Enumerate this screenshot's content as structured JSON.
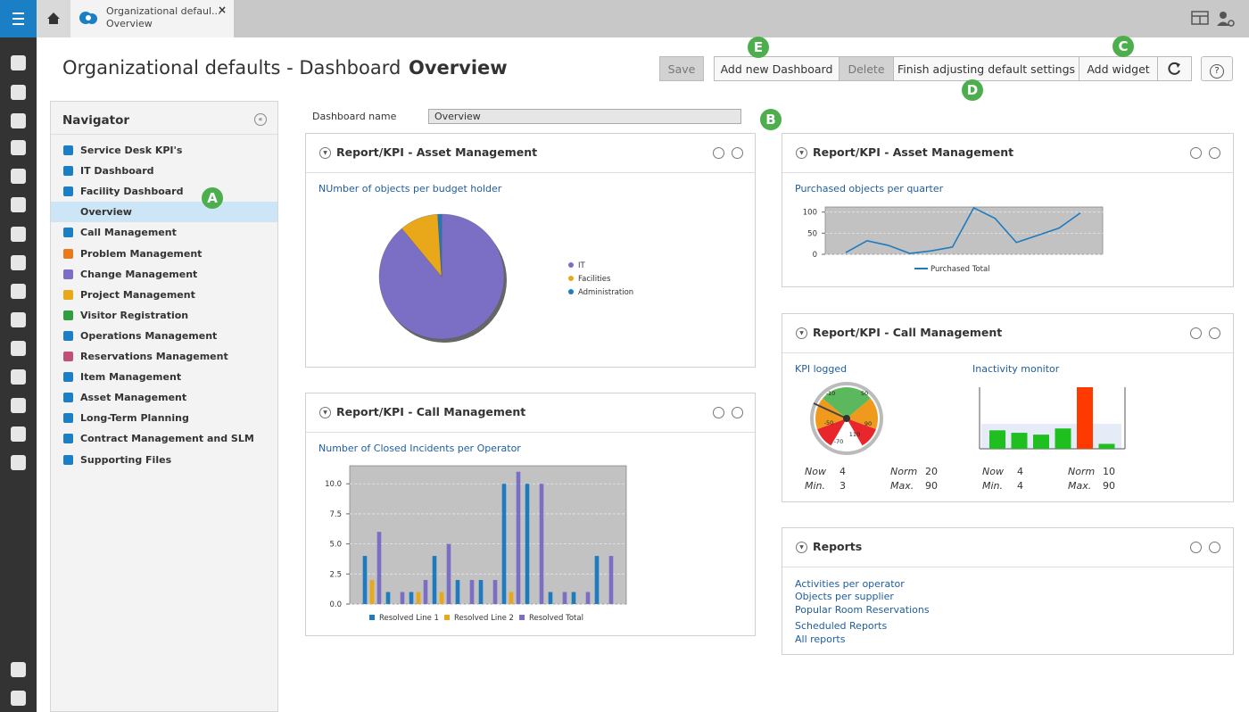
{
  "app": {
    "tab": {
      "title": "Organizational defaul...",
      "subtitle": "Overview",
      "close": "×"
    }
  },
  "header": {
    "title": "Organizational defaults - Dashboard",
    "subtitle": "Overview"
  },
  "toolbar": {
    "save": "Save",
    "add_dashboard": "Add new Dashboard",
    "delete": "Delete",
    "finish": "Finish adjusting default settings",
    "add_widget": "Add widget",
    "help": "?"
  },
  "callouts": {
    "a": "A",
    "b": "B",
    "c": "C",
    "d": "D",
    "e": "E"
  },
  "navigator": {
    "title": "Navigator",
    "selected": 3,
    "items": [
      "Service Desk KPI's",
      "IT Dashboard",
      "Facility Dashboard",
      "Overview",
      "Call Management",
      "Problem Management",
      "Change Management",
      "Project Management",
      "Visitor Registration",
      "Operations Management",
      "Reservations Management",
      "Item Management",
      "Asset Management",
      "Long-Term Planning",
      "Contract Management and SLM",
      "Supporting Files"
    ]
  },
  "dashboard_name": {
    "label": "Dashboard name",
    "value": "Overview"
  },
  "widgets": [
    {
      "title": "Report/KPI - Asset Management",
      "chart_data": {
        "type": "pie",
        "title": "NUmber of objects per budget holder",
        "categories": [
          "IT",
          "Facilities",
          "Administration"
        ],
        "values": [
          89,
          10,
          1
        ],
        "colors": [
          "#7a6fc4",
          "#e9a81a",
          "#1f7bbf"
        ]
      }
    },
    {
      "title": "Report/KPI - Call Management",
      "chart_data": {
        "type": "bar",
        "title": "Number of Closed Incidents per Operator",
        "categories": [
          null,
          null,
          null,
          null,
          null,
          null,
          null,
          null,
          null,
          null,
          null
        ],
        "series": [
          {
            "name": "Resolved Line 1",
            "color": "#1f7bbf",
            "values": [
              4,
              1,
              1,
              4,
              2,
              2,
              10,
              10,
              1,
              1,
              4
            ]
          },
          {
            "name": "Resolved Line 2",
            "color": "#e9a81a",
            "values": [
              2,
              0,
              1,
              1,
              0,
              0,
              1,
              0,
              0,
              0,
              0
            ]
          },
          {
            "name": "Resolved Total",
            "color": "#7a6fc4",
            "values": [
              6,
              1,
              2,
              5,
              2,
              2,
              11,
              10,
              1,
              1,
              4
            ]
          }
        ],
        "ylim": [
          0,
          11.5
        ],
        "yticks": [
          {
            "value": 0,
            "label": "0.0"
          },
          {
            "value": 2.5,
            "label": "2.5"
          },
          {
            "value": 5,
            "label": "5.0"
          },
          {
            "value": 7.5,
            "label": "7.5"
          },
          {
            "value": 10,
            "label": "10.0"
          }
        ],
        "grid": true
      }
    },
    {
      "title": "Report/KPI - Asset Management",
      "chart_data": {
        "type": "line",
        "title": "Purchased objects per quarter",
        "categories": [
          null,
          null,
          null,
          null,
          null,
          null,
          null,
          null,
          null,
          null,
          null,
          null
        ],
        "series": [
          {
            "name": "Purchased Total",
            "color": "#1f7bbf",
            "values": [
              4,
              32,
              21,
              2,
              8,
              17,
              110,
              85,
              28,
              45,
              62,
              98
            ]
          }
        ],
        "ylim": [
          0,
          112
        ],
        "yticks": [
          0,
          50,
          100
        ],
        "grid": true
      }
    },
    {
      "title": "Report/KPI - Call Management",
      "kpis": [
        {
          "title": "KPI logged",
          "gauge_labels": [
            -10,
            50,
            -50,
            90,
            110,
            -70
          ],
          "stats": [
            {
              "label": "Now",
              "value": 4
            },
            {
              "label": "Norm",
              "value": 20
            },
            {
              "label": "Min.",
              "value": 3
            },
            {
              "label": "Max.",
              "value": 90
            }
          ]
        },
        {
          "title": "Inactivity monitor",
          "stats": [
            {
              "label": "Now",
              "value": 4
            },
            {
              "label": "Norm",
              "value": 10
            },
            {
              "label": "Min.",
              "value": 4
            },
            {
              "label": "Max.",
              "value": 90
            }
          ],
          "chart_data": {
            "type": "bar",
            "values": [
              3,
              2.6,
              2.3,
              3.3,
              10,
              0.8
            ],
            "ylim": [
              0,
              10
            ],
            "colors": [
              "#1fbf1f",
              "#1fbf1f",
              "#1fbf1f",
              "#1fbf1f",
              "#ff3a00",
              "#1fbf1f"
            ]
          }
        }
      ]
    },
    {
      "title": "Reports",
      "links": [
        [
          "Activities per operator",
          "Objects per supplier",
          "Popular Room Reservations"
        ],
        [
          "Scheduled Reports",
          "All reports"
        ]
      ]
    }
  ]
}
